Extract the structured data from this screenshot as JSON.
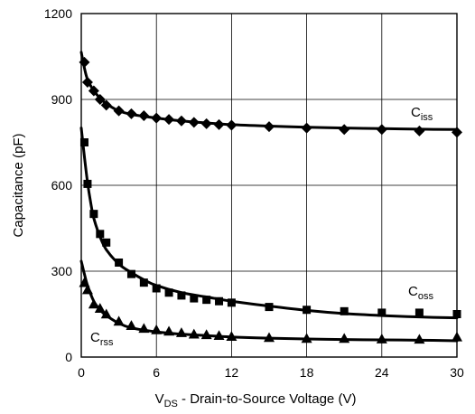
{
  "chart_data": {
    "type": "line",
    "title": "",
    "xlabel": {
      "prefix": "V",
      "sub": "DS",
      "suffix": " - Drain-to-Source Voltage (V)"
    },
    "ylabel": "Capacitance (pF)",
    "xlim": [
      0,
      30
    ],
    "ylim": [
      0,
      1200
    ],
    "xticks": [
      0,
      6,
      12,
      18,
      24,
      30
    ],
    "yticks": [
      0,
      300,
      600,
      900,
      1200
    ],
    "grid": true,
    "legend": "inline-labels",
    "series": [
      {
        "name": "Ciss",
        "label_main": "C",
        "label_sub": "iss",
        "marker": "diamond",
        "color": "#000000",
        "curve": [
          [
            0,
            1065
          ],
          [
            0.25,
            1010
          ],
          [
            0.5,
            970
          ],
          [
            1,
            930
          ],
          [
            1.5,
            905
          ],
          [
            2,
            885
          ],
          [
            3,
            860
          ],
          [
            4,
            848
          ],
          [
            6,
            835
          ],
          [
            8,
            825
          ],
          [
            10,
            818
          ],
          [
            12,
            812
          ],
          [
            15,
            807
          ],
          [
            18,
            803
          ],
          [
            21,
            800
          ],
          [
            24,
            798
          ],
          [
            27,
            796
          ],
          [
            30,
            795
          ]
        ],
        "points": [
          [
            0.25,
            1030
          ],
          [
            0.5,
            960
          ],
          [
            1,
            930
          ],
          [
            1.5,
            900
          ],
          [
            2,
            880
          ],
          [
            3,
            860
          ],
          [
            4,
            850
          ],
          [
            5,
            843
          ],
          [
            6,
            835
          ],
          [
            7,
            830
          ],
          [
            8,
            825
          ],
          [
            9,
            820
          ],
          [
            10,
            815
          ],
          [
            11,
            812
          ],
          [
            12,
            810
          ],
          [
            15,
            805
          ],
          [
            18,
            800
          ],
          [
            21,
            795
          ],
          [
            24,
            795
          ],
          [
            27,
            790
          ],
          [
            30,
            785
          ]
        ]
      },
      {
        "name": "Coss",
        "label_main": "C",
        "label_sub": "oss",
        "marker": "square",
        "color": "#000000",
        "curve": [
          [
            0,
            800
          ],
          [
            0.25,
            700
          ],
          [
            0.5,
            610
          ],
          [
            0.75,
            540
          ],
          [
            1,
            485
          ],
          [
            1.5,
            420
          ],
          [
            2,
            375
          ],
          [
            3,
            325
          ],
          [
            4,
            295
          ],
          [
            5,
            270
          ],
          [
            6,
            250
          ],
          [
            8,
            225
          ],
          [
            10,
            210
          ],
          [
            12,
            195
          ],
          [
            15,
            178
          ],
          [
            18,
            163
          ],
          [
            21,
            152
          ],
          [
            24,
            145
          ],
          [
            27,
            140
          ],
          [
            30,
            137
          ]
        ],
        "points": [
          [
            0.25,
            750
          ],
          [
            0.5,
            605
          ],
          [
            1,
            500
          ],
          [
            1.5,
            430
          ],
          [
            2,
            400
          ],
          [
            3,
            330
          ],
          [
            4,
            290
          ],
          [
            5,
            260
          ],
          [
            6,
            240
          ],
          [
            7,
            225
          ],
          [
            8,
            215
          ],
          [
            9,
            205
          ],
          [
            10,
            200
          ],
          [
            11,
            195
          ],
          [
            12,
            190
          ],
          [
            15,
            175
          ],
          [
            18,
            165
          ],
          [
            21,
            160
          ],
          [
            24,
            155
          ],
          [
            27,
            155
          ],
          [
            30,
            150
          ]
        ]
      },
      {
        "name": "Crss",
        "label_main": "C",
        "label_sub": "rss",
        "marker": "triangle",
        "color": "#000000",
        "curve": [
          [
            0,
            335
          ],
          [
            0.25,
            290
          ],
          [
            0.5,
            250
          ],
          [
            1,
            195
          ],
          [
            1.5,
            165
          ],
          [
            2,
            145
          ],
          [
            3,
            118
          ],
          [
            4,
            102
          ],
          [
            6,
            88
          ],
          [
            8,
            80
          ],
          [
            10,
            75
          ],
          [
            12,
            70
          ],
          [
            15,
            66
          ],
          [
            18,
            63
          ],
          [
            21,
            61
          ],
          [
            24,
            60
          ],
          [
            27,
            59
          ],
          [
            30,
            57
          ]
        ],
        "points": [
          [
            0.25,
            260
          ],
          [
            0.5,
            235
          ],
          [
            1,
            185
          ],
          [
            1.5,
            170
          ],
          [
            2,
            150
          ],
          [
            3,
            125
          ],
          [
            4,
            110
          ],
          [
            5,
            100
          ],
          [
            6,
            95
          ],
          [
            7,
            90
          ],
          [
            8,
            85
          ],
          [
            9,
            80
          ],
          [
            10,
            78
          ],
          [
            11,
            75
          ],
          [
            12,
            72
          ],
          [
            15,
            68
          ],
          [
            18,
            65
          ],
          [
            21,
            65
          ],
          [
            24,
            63
          ],
          [
            27,
            62
          ],
          [
            30,
            70
          ]
        ]
      }
    ]
  }
}
